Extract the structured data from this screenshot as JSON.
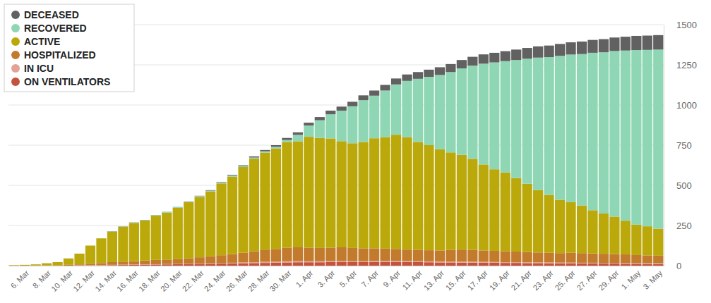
{
  "chart_data": {
    "type": "bar",
    "stacked": true,
    "grid": true,
    "legend": "top-left",
    "categories": [
      null,
      "6. Mar",
      null,
      "8. Mar",
      null,
      "10. Mar",
      null,
      "12. Mar",
      null,
      "14. Mar",
      null,
      "16. Mar",
      null,
      "18. Mar",
      null,
      "20. Mar",
      null,
      "22. Mar",
      null,
      "24. Mar",
      null,
      "26. Mar",
      null,
      "28. Mar",
      null,
      "30. Mar",
      null,
      "1. Apr",
      null,
      "3. Apr",
      null,
      "5. Apr",
      null,
      "7. Apr",
      null,
      "9. Apr",
      null,
      "11. Apr",
      null,
      "13. Apr",
      null,
      "15. Apr",
      null,
      "17. Apr",
      null,
      "19. Apr",
      null,
      "21. Apr",
      null,
      "23. Apr",
      null,
      "25. Apr",
      null,
      "27. Apr",
      null,
      "29. Apr",
      null,
      "1. May",
      null,
      "3. May"
    ],
    "ylim": [
      0,
      1500
    ],
    "yticks": [
      0,
      250,
      500,
      750,
      1000,
      1250,
      1500
    ],
    "series": [
      {
        "name": "DECEASED",
        "color": "#616161",
        "values": [
          0,
          0,
          0,
          0,
          0,
          0,
          0,
          0,
          0,
          1,
          1,
          1,
          1,
          1,
          1,
          1,
          1,
          2,
          3,
          3,
          4,
          5,
          7,
          8,
          10,
          13,
          16,
          18,
          20,
          23,
          25,
          28,
          30,
          32,
          35,
          37,
          40,
          42,
          45,
          48,
          50,
          52,
          55,
          58,
          60,
          62,
          65,
          67,
          70,
          72,
          74,
          76,
          78,
          80,
          82,
          84,
          86,
          88,
          89,
          90
        ]
      },
      {
        "name": "RECOVERED",
        "color": "#8fd6b4",
        "values": [
          0,
          0,
          0,
          0,
          0,
          0,
          0,
          0,
          0,
          2,
          2,
          3,
          3,
          3,
          4,
          4,
          4,
          5,
          5,
          5,
          6,
          6,
          7,
          8,
          10,
          12,
          40,
          70,
          110,
          150,
          190,
          230,
          260,
          265,
          290,
          313,
          350,
          393,
          425,
          462,
          500,
          538,
          580,
          627,
          665,
          693,
          735,
          778,
          825,
          858,
          896,
          919,
          942,
          980,
          1003,
          1031,
          1059,
          1087,
          1098,
          1115
        ]
      },
      {
        "name": "ACTIVE",
        "color": "#bba90c",
        "values": [
          3,
          5,
          7,
          13,
          19,
          40,
          67,
          113,
          154,
          190,
          217,
          238,
          249,
          275,
          292,
          320,
          350,
          376,
          404,
          447,
          483,
          534,
          576,
          604,
          626,
          658,
          660,
          690,
          685,
          680,
          661,
          652,
          662,
          685,
          694,
          711,
          700,
          672,
          654,
          630,
          607,
          590,
          567,
          535,
          508,
          490,
          457,
          425,
          388,
          360,
          332,
          315,
          297,
          269,
          251,
          233,
          210,
          189,
          181,
          168
        ]
      },
      {
        "name": "HOSPITALIZED",
        "color": "#c27a2c",
        "values": [
          0,
          0,
          1,
          2,
          3,
          5,
          6,
          9,
          12,
          17,
          19,
          21,
          24,
          27,
          28,
          29,
          33,
          39,
          43,
          49,
          54,
          60,
          68,
          76,
          79,
          84,
          85,
          84,
          82,
          83,
          85,
          82,
          80,
          78,
          76,
          74,
          71,
          70,
          69,
          68,
          72,
          74,
          73,
          71,
          69,
          68,
          66,
          64,
          62,
          60,
          59,
          61,
          60,
          58,
          57,
          55,
          54,
          50,
          49,
          47
        ]
      },
      {
        "name": "IN ICU",
        "color": "#e2a294",
        "values": [
          0,
          0,
          0,
          0,
          0,
          0,
          2,
          2,
          2,
          2,
          2,
          2,
          2,
          2,
          2,
          2,
          2,
          2,
          3,
          3,
          4,
          5,
          6,
          7,
          7,
          8,
          8,
          7,
          7,
          7,
          7,
          6,
          6,
          7,
          6,
          6,
          6,
          6,
          6,
          7,
          6,
          7,
          6,
          6,
          5,
          5,
          5,
          5,
          4,
          5,
          4,
          4,
          4,
          4,
          4,
          4,
          4,
          4,
          4,
          4
        ]
      },
      {
        "name": "ON VENTILATORS",
        "color": "#c4523c",
        "values": [
          0,
          0,
          0,
          0,
          0,
          0,
          0,
          1,
          2,
          3,
          4,
          5,
          6,
          7,
          8,
          9,
          10,
          11,
          12,
          13,
          14,
          15,
          16,
          17,
          18,
          20,
          21,
          21,
          21,
          22,
          22,
          22,
          22,
          23,
          24,
          24,
          23,
          22,
          21,
          20,
          20,
          19,
          19,
          18,
          18,
          17,
          17,
          16,
          16,
          15,
          15,
          15,
          14,
          14,
          13,
          13,
          12,
          12,
          11,
          11
        ]
      }
    ]
  }
}
